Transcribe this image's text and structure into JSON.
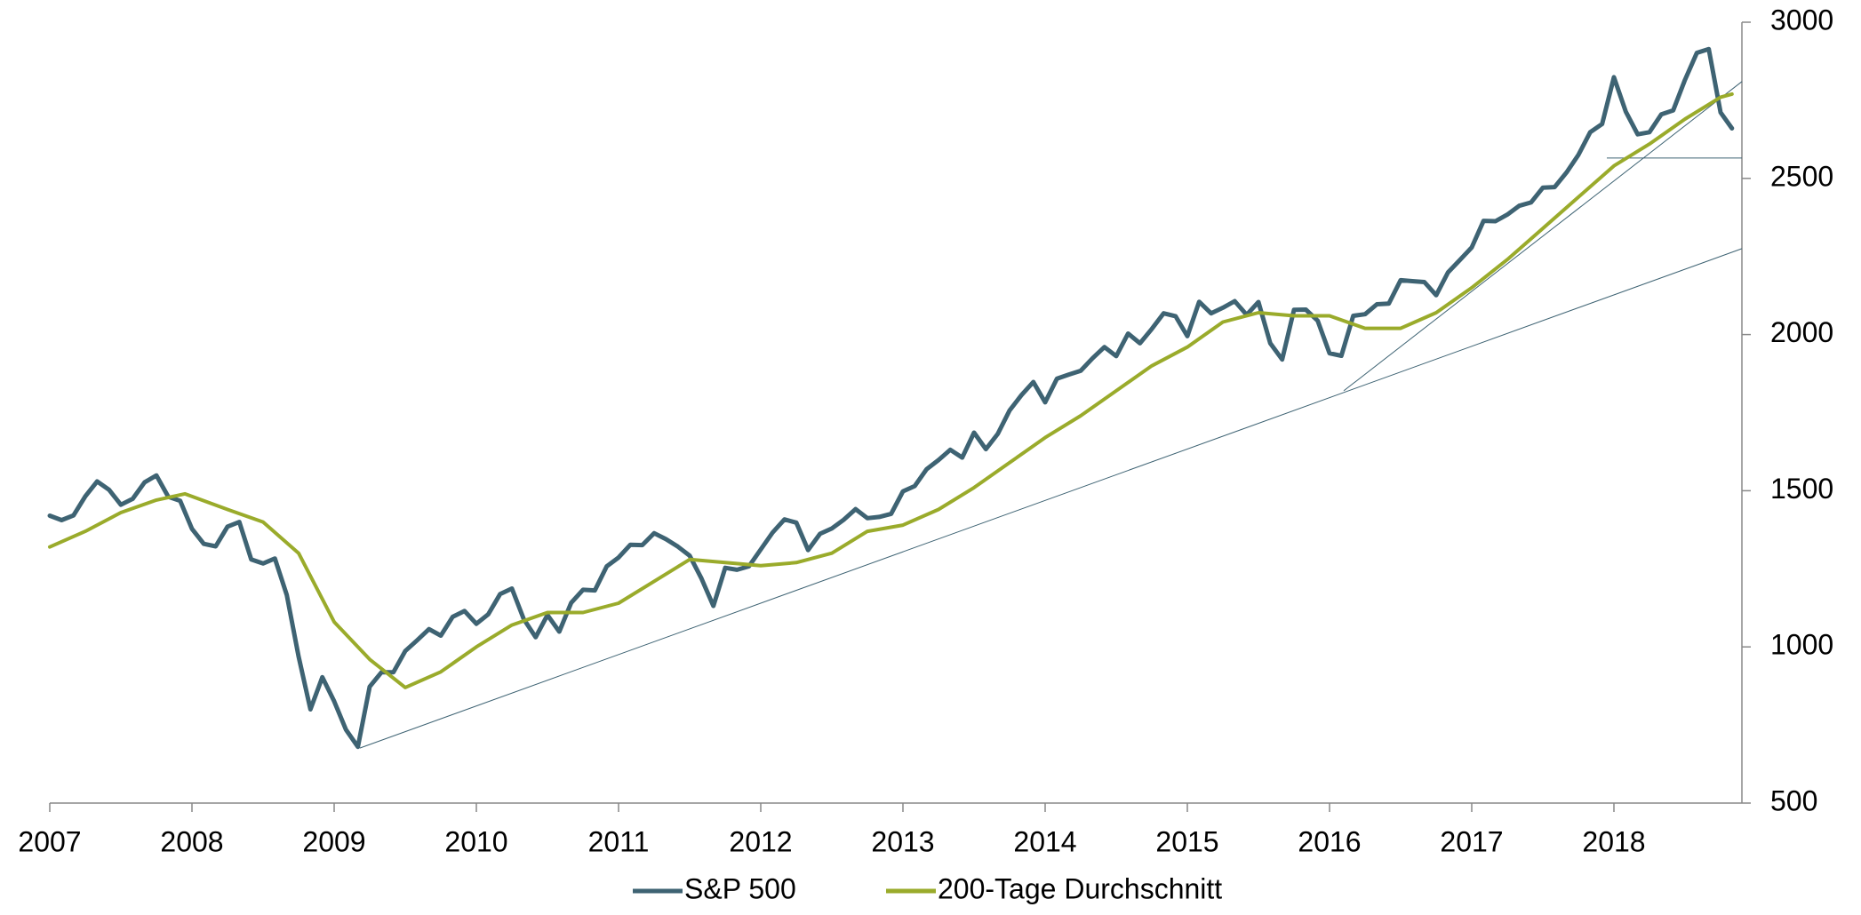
{
  "chart_data": {
    "type": "line",
    "xlim": [
      2007,
      2018.9
    ],
    "xticks": [
      2007,
      2008,
      2009,
      2010,
      2011,
      2012,
      2013,
      2014,
      2015,
      2016,
      2017,
      2018
    ],
    "ylim": [
      500,
      3000
    ],
    "yticks": [
      500,
      1000,
      1500,
      2000,
      2500,
      3000
    ],
    "y_axis_side": "right",
    "grid": false,
    "legend": "bottom",
    "series": [
      {
        "name": "S&P 500",
        "color": "#3e6373",
        "x": [
          2007.0,
          2007.083,
          2007.167,
          2007.25,
          2007.333,
          2007.417,
          2007.5,
          2007.583,
          2007.667,
          2007.75,
          2007.833,
          2007.917,
          2008.0,
          2008.083,
          2008.167,
          2008.25,
          2008.333,
          2008.417,
          2008.5,
          2008.583,
          2008.667,
          2008.75,
          2008.833,
          2008.917,
          2009.0,
          2009.083,
          2009.167,
          2009.25,
          2009.333,
          2009.417,
          2009.5,
          2009.583,
          2009.667,
          2009.75,
          2009.833,
          2009.917,
          2010.0,
          2010.083,
          2010.167,
          2010.25,
          2010.333,
          2010.417,
          2010.5,
          2010.583,
          2010.667,
          2010.75,
          2010.833,
          2010.917,
          2011.0,
          2011.083,
          2011.167,
          2011.25,
          2011.333,
          2011.417,
          2011.5,
          2011.583,
          2011.667,
          2011.75,
          2011.833,
          2011.917,
          2012.0,
          2012.083,
          2012.167,
          2012.25,
          2012.333,
          2012.417,
          2012.5,
          2012.583,
          2012.667,
          2012.75,
          2012.833,
          2012.917,
          2013.0,
          2013.083,
          2013.167,
          2013.25,
          2013.333,
          2013.417,
          2013.5,
          2013.583,
          2013.667,
          2013.75,
          2013.833,
          2013.917,
          2014.0,
          2014.083,
          2014.167,
          2014.25,
          2014.333,
          2014.417,
          2014.5,
          2014.583,
          2014.667,
          2014.75,
          2014.833,
          2014.917,
          2015.0,
          2015.083,
          2015.167,
          2015.25,
          2015.333,
          2015.417,
          2015.5,
          2015.583,
          2015.667,
          2015.75,
          2015.833,
          2015.917,
          2016.0,
          2016.083,
          2016.167,
          2016.25,
          2016.333,
          2016.417,
          2016.5,
          2016.583,
          2016.667,
          2016.75,
          2016.833,
          2016.917,
          2017.0,
          2017.083,
          2017.167,
          2017.25,
          2017.333,
          2017.417,
          2017.5,
          2017.583,
          2017.667,
          2017.75,
          2017.833,
          2017.917,
          2018.0,
          2018.083,
          2018.167,
          2018.25,
          2018.333,
          2018.417,
          2018.5,
          2018.583,
          2018.667,
          2018.75,
          2018.83
        ],
        "values": [
          1420,
          1406,
          1421,
          1482,
          1530,
          1503,
          1455,
          1474,
          1527,
          1549,
          1481,
          1468,
          1378,
          1330,
          1322,
          1385,
          1400,
          1280,
          1267,
          1283,
          1166,
          969,
          800,
          903,
          826,
          735,
          680,
          873,
          919,
          919,
          987,
          1021,
          1057,
          1036,
          1096,
          1115,
          1074,
          1104,
          1169,
          1187,
          1089,
          1031,
          1102,
          1049,
          1141,
          1183,
          1181,
          1258,
          1286,
          1327,
          1326,
          1364,
          1345,
          1321,
          1292,
          1219,
          1131,
          1253,
          1247,
          1258,
          1312,
          1366,
          1408,
          1398,
          1310,
          1362,
          1379,
          1407,
          1441,
          1412,
          1416,
          1426,
          1498,
          1515,
          1569,
          1598,
          1631,
          1606,
          1686,
          1633,
          1682,
          1757,
          1806,
          1848,
          1783,
          1859,
          1872,
          1884,
          1924,
          1960,
          1931,
          2003,
          1972,
          2018,
          2068,
          2059,
          1995,
          2105,
          2068,
          2086,
          2107,
          2063,
          2104,
          1972,
          1920,
          2079,
          2080,
          2044,
          1940,
          1932,
          2060,
          2065,
          2097,
          2099,
          2174,
          2171,
          2168,
          2126,
          2199,
          2239,
          2279,
          2364,
          2363,
          2384,
          2412,
          2423,
          2470,
          2472,
          2519,
          2575,
          2648,
          2674,
          2824,
          2714,
          2641,
          2648,
          2705,
          2718,
          2816,
          2902,
          2914,
          2711,
          2660
        ]
      },
      {
        "name": "200-Tage Durchschnitt",
        "color": "#9aab2b",
        "x": [
          2007.0,
          2007.25,
          2007.5,
          2007.75,
          2007.95,
          2008.25,
          2008.5,
          2008.75,
          2009.0,
          2009.25,
          2009.5,
          2009.75,
          2010.0,
          2010.25,
          2010.5,
          2010.75,
          2011.0,
          2011.25,
          2011.5,
          2011.75,
          2012.0,
          2012.25,
          2012.5,
          2012.75,
          2013.0,
          2013.25,
          2013.5,
          2013.75,
          2014.0,
          2014.25,
          2014.5,
          2014.75,
          2015.0,
          2015.25,
          2015.5,
          2015.75,
          2016.0,
          2016.25,
          2016.5,
          2016.75,
          2017.0,
          2017.25,
          2017.5,
          2017.75,
          2018.0,
          2018.25,
          2018.5,
          2018.75,
          2018.83
        ],
        "values": [
          1320,
          1370,
          1430,
          1470,
          1490,
          1440,
          1400,
          1300,
          1080,
          960,
          870,
          920,
          1000,
          1070,
          1110,
          1110,
          1140,
          1210,
          1280,
          1270,
          1260,
          1270,
          1300,
          1370,
          1390,
          1440,
          1510,
          1590,
          1670,
          1740,
          1820,
          1900,
          1960,
          2040,
          2070,
          2060,
          2060,
          2020,
          2020,
          2070,
          2150,
          2240,
          2340,
          2440,
          2540,
          2610,
          2690,
          2760,
          2770
        ]
      }
    ],
    "trend_lines": [
      {
        "x": [
          2009.18,
          2018.9
        ],
        "values": [
          676,
          2275
        ]
      },
      {
        "x": [
          2016.1,
          2018.9
        ],
        "values": [
          1820,
          2810
        ]
      },
      {
        "x": [
          2017.95,
          2018.9
        ],
        "values": [
          2565,
          2565
        ]
      }
    ]
  }
}
